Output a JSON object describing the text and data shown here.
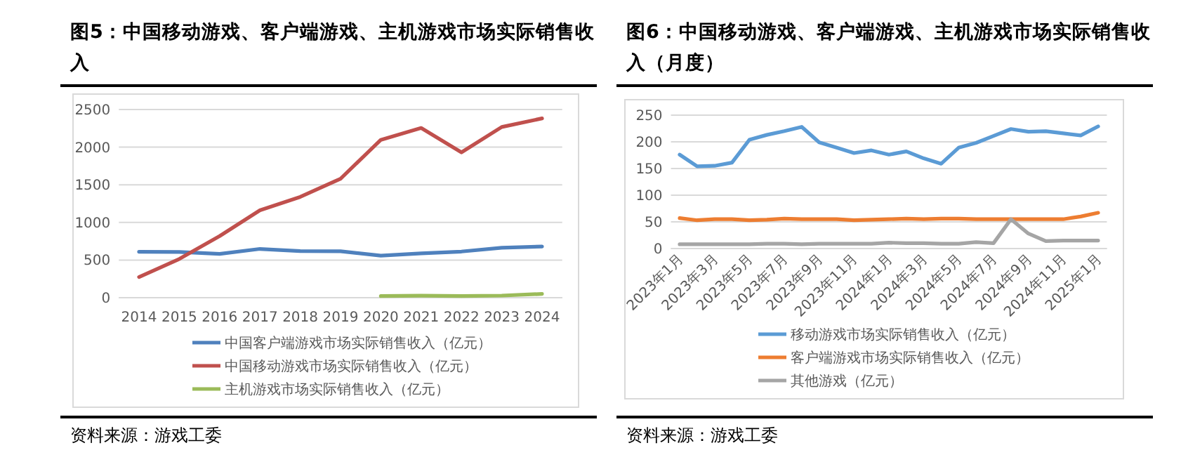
{
  "chart_data": [
    {
      "type": "line",
      "title": "图5：中国移动游戏、客户端游戏、主机游戏市场实际销售收入",
      "annotations": [
        "资料来源：游戏工委"
      ],
      "categories": [
        "2014",
        "2015",
        "2016",
        "2017",
        "2018",
        "2019",
        "2020",
        "2021",
        "2022",
        "2023",
        "2024"
      ],
      "series": [
        {
          "name": "中国客户端游戏市场实际销售收入（亿元）",
          "color": "#4f81bd",
          "values": [
            610,
            608,
            582,
            648,
            619,
            616,
            559,
            588,
            613,
            663,
            680
          ]
        },
        {
          "name": "中国移动游戏市场实际销售收入（亿元）",
          "color": "#c0504d",
          "values": [
            275,
            515,
            819,
            1162,
            1339,
            1581,
            2097,
            2255,
            1931,
            2268,
            2382
          ]
        },
        {
          "name": "主机游戏市场实际销售收入（亿元）",
          "color": "#9bbb59",
          "values": [
            null,
            null,
            null,
            null,
            null,
            null,
            22,
            26,
            22,
            28,
            50
          ]
        }
      ],
      "ylim": [
        0,
        2500
      ],
      "yticks": [
        0,
        500,
        1000,
        1500,
        2000,
        2500
      ],
      "grid": "y",
      "legend": "bottom",
      "marker": "none"
    },
    {
      "type": "line",
      "title": "图6：中国移动游戏、客户端游戏、主机游戏市场实际销售收入（月度）",
      "annotations": [
        "资料来源：游戏工委"
      ],
      "categories": [
        "2023年1月",
        null,
        "2023年3月",
        null,
        "2023年5月",
        null,
        "2023年7月",
        null,
        "2023年9月",
        null,
        "2023年11月",
        null,
        "2024年1月",
        null,
        "2024年3月",
        null,
        "2024年5月",
        null,
        "2024年7月",
        null,
        "2024年9月",
        null,
        "2024年11月",
        null,
        "2025年1月"
      ],
      "series": [
        {
          "name": "移动游戏市场实际销售收入（亿元）",
          "color": "#5b9bd5",
          "values": [
            176,
            154,
            155,
            161,
            204,
            213,
            220,
            228,
            199,
            189,
            179,
            184,
            176,
            182,
            169,
            159,
            189,
            198,
            211,
            224,
            219,
            220,
            216,
            212,
            229
          ]
        },
        {
          "name": "客户端游戏市场实际销售收入（亿元）",
          "color": "#ed7d31",
          "values": [
            57,
            53,
            55,
            55,
            53,
            54,
            56,
            55,
            55,
            55,
            53,
            54,
            55,
            56,
            55,
            56,
            56,
            55,
            55,
            55,
            55,
            55,
            55,
            60,
            67
          ]
        },
        {
          "name": "其他游戏（亿元）",
          "color": "#a5a5a5",
          "values": [
            8,
            8,
            8,
            8,
            8,
            9,
            9,
            8,
            9,
            9,
            9,
            9,
            11,
            10,
            10,
            9,
            9,
            12,
            10,
            55,
            28,
            14,
            15,
            15,
            15
          ]
        }
      ],
      "ylim": [
        0,
        250
      ],
      "yticks": [
        0,
        50,
        100,
        150,
        200,
        250
      ],
      "grid": "y",
      "legend": "bottom",
      "marker": "none"
    }
  ]
}
